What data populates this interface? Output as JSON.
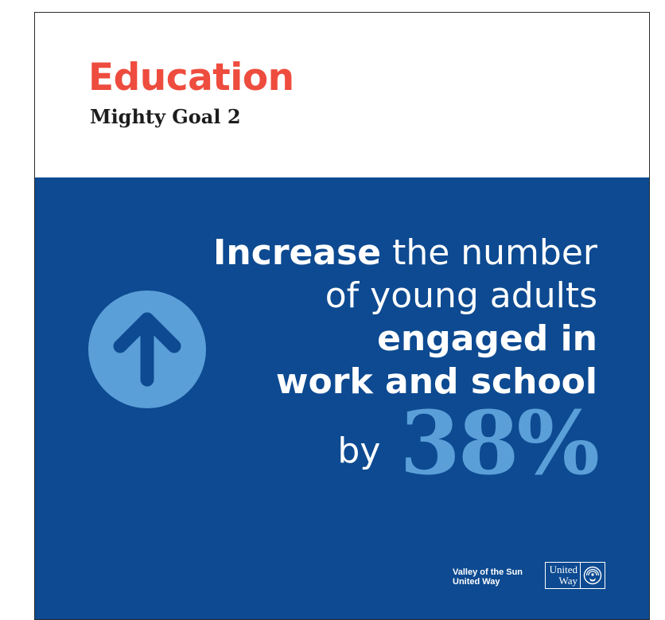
{
  "header": {
    "title": "Education",
    "subtitle": "Mighty Goal 2"
  },
  "goal": {
    "icon": "arrow-up-circle-icon",
    "line1_bold": "Increase",
    "line1_rest": " the number",
    "line2": "of young adults",
    "line3": "engaged in",
    "line4": "work and school",
    "by": "by",
    "percent": "38%"
  },
  "footer": {
    "org_line1": "Valley of the Sun",
    "org_line2": "United Way",
    "logo_word1": "United",
    "logo_word2": "Way",
    "logo_mark_icon": "hand-person-rainbow-icon"
  },
  "colors": {
    "title": "#ee4c3e",
    "panel": "#0d4a91",
    "accent": "#5a9fd8",
    "text_dark": "#1d1d1d"
  }
}
